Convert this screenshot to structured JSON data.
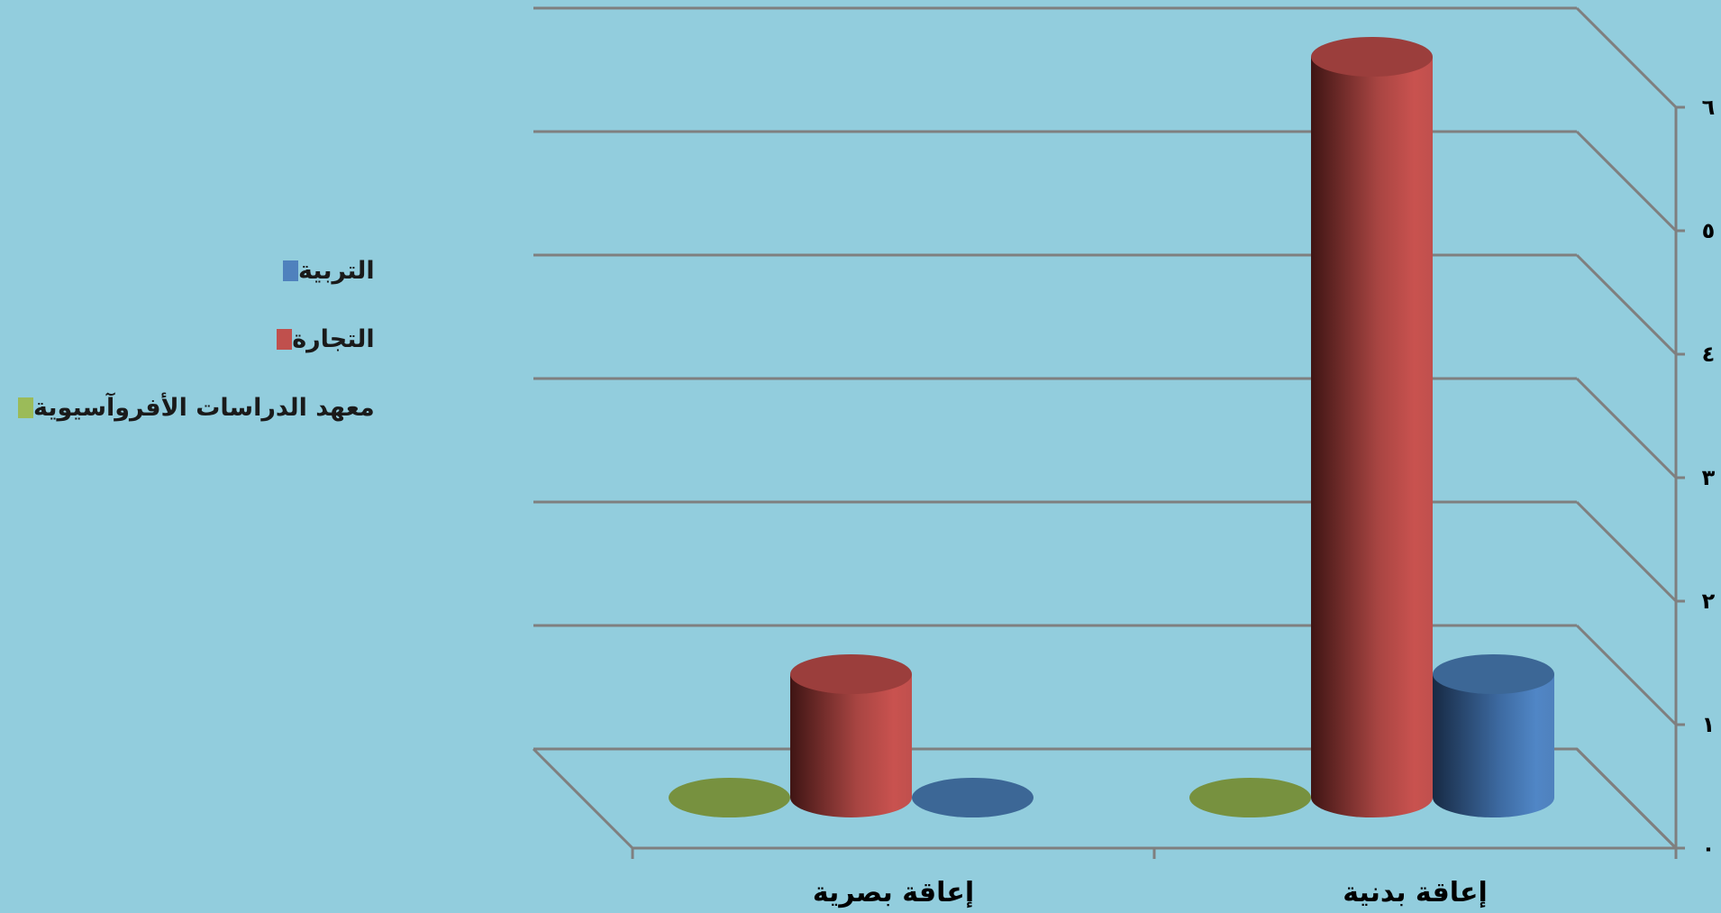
{
  "chart_data": {
    "type": "bar",
    "style": "3d-cylinder",
    "categories": [
      "إعاقة بصرية",
      "إعاقة بدنية"
    ],
    "series": [
      {
        "name": "التربية",
        "values": [
          0,
          1
        ],
        "color": "#4F81BD"
      },
      {
        "name": "التجارة",
        "values": [
          1,
          6
        ],
        "color": "#C0504D"
      },
      {
        "name": "معهد الدراسات الأفروآسيوية",
        "values": [
          0,
          0
        ],
        "color": "#9BBB59"
      }
    ],
    "ylim": [
      0,
      6
    ],
    "yticks": [
      "٠",
      "١",
      "٢",
      "٣",
      "٤",
      "٥",
      "٦"
    ],
    "y_axis_side": "right",
    "grid": true,
    "legend_position": "left",
    "title": "",
    "xlabel": "",
    "ylabel": ""
  }
}
